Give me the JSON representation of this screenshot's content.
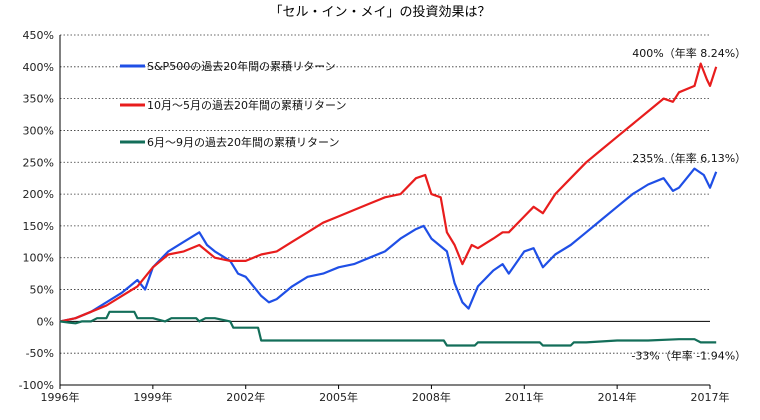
{
  "chart_data": {
    "type": "line",
    "title": "「セル・イン・メイ」の投資効果は？",
    "yaxis": {
      "min": -100,
      "max": 450,
      "step": 50,
      "tick_labels": [
        "-100%",
        "-50%",
        "0%",
        "50%",
        "100%",
        "150%",
        "200%",
        "250%",
        "300%",
        "350%",
        "400%",
        "450%"
      ]
    },
    "xaxis": {
      "min": 1996,
      "max": 2017,
      "ticks": [
        1996,
        1999,
        2002,
        2005,
        2008,
        2011,
        2014,
        2017
      ],
      "tick_labels": [
        "1996年",
        "1999年",
        "2002年",
        "2005年",
        "2008年",
        "2011年",
        "2014年",
        "2017年"
      ]
    },
    "grid": "horizontal dotted",
    "legend_position": "top-left",
    "series": [
      {
        "name": "S&P500の過去20年間の累積リターン",
        "color": "#1f4fe6",
        "points": [
          [
            1996.0,
            0
          ],
          [
            1996.5,
            5
          ],
          [
            1997.0,
            15
          ],
          [
            1997.5,
            30
          ],
          [
            1998.0,
            45
          ],
          [
            1998.5,
            65
          ],
          [
            1998.75,
            50
          ],
          [
            1999.0,
            85
          ],
          [
            1999.5,
            110
          ],
          [
            2000.0,
            125
          ],
          [
            2000.5,
            140
          ],
          [
            2000.75,
            120
          ],
          [
            2001.0,
            110
          ],
          [
            2001.5,
            95
          ],
          [
            2001.75,
            75
          ],
          [
            2002.0,
            70
          ],
          [
            2002.5,
            40
          ],
          [
            2002.75,
            30
          ],
          [
            2003.0,
            35
          ],
          [
            2003.5,
            55
          ],
          [
            2004.0,
            70
          ],
          [
            2004.5,
            75
          ],
          [
            2005.0,
            85
          ],
          [
            2005.5,
            90
          ],
          [
            2006.0,
            100
          ],
          [
            2006.5,
            110
          ],
          [
            2007.0,
            130
          ],
          [
            2007.5,
            145
          ],
          [
            2007.75,
            150
          ],
          [
            2008.0,
            130
          ],
          [
            2008.5,
            110
          ],
          [
            2008.75,
            60
          ],
          [
            2009.0,
            30
          ],
          [
            2009.2,
            20
          ],
          [
            2009.5,
            55
          ],
          [
            2010.0,
            80
          ],
          [
            2010.3,
            90
          ],
          [
            2010.5,
            75
          ],
          [
            2011.0,
            110
          ],
          [
            2011.3,
            115
          ],
          [
            2011.6,
            85
          ],
          [
            2012.0,
            105
          ],
          [
            2012.5,
            120
          ],
          [
            2013.0,
            140
          ],
          [
            2013.5,
            160
          ],
          [
            2014.0,
            180
          ],
          [
            2014.5,
            200
          ],
          [
            2015.0,
            215
          ],
          [
            2015.5,
            225
          ],
          [
            2015.8,
            205
          ],
          [
            2016.0,
            210
          ],
          [
            2016.5,
            240
          ],
          [
            2016.8,
            230
          ],
          [
            2017.0,
            210
          ],
          [
            2017.2,
            235
          ]
        ]
      },
      {
        "name": "10月～5月の過去20年間の累積リターン",
        "color": "#e81d1d",
        "points": [
          [
            1996.0,
            0
          ],
          [
            1996.5,
            5
          ],
          [
            1997.0,
            15
          ],
          [
            1997.5,
            25
          ],
          [
            1998.0,
            40
          ],
          [
            1998.5,
            55
          ],
          [
            1999.0,
            85
          ],
          [
            1999.5,
            105
          ],
          [
            2000.0,
            110
          ],
          [
            2000.5,
            120
          ],
          [
            2001.0,
            100
          ],
          [
            2001.5,
            95
          ],
          [
            2002.0,
            95
          ],
          [
            2002.5,
            105
          ],
          [
            2003.0,
            110
          ],
          [
            2003.5,
            125
          ],
          [
            2004.0,
            140
          ],
          [
            2004.5,
            155
          ],
          [
            2005.0,
            165
          ],
          [
            2005.5,
            175
          ],
          [
            2006.0,
            185
          ],
          [
            2006.5,
            195
          ],
          [
            2007.0,
            200
          ],
          [
            2007.5,
            225
          ],
          [
            2007.8,
            230
          ],
          [
            2008.0,
            200
          ],
          [
            2008.3,
            195
          ],
          [
            2008.5,
            140
          ],
          [
            2008.75,
            120
          ],
          [
            2009.0,
            90
          ],
          [
            2009.3,
            120
          ],
          [
            2009.5,
            115
          ],
          [
            2010.0,
            130
          ],
          [
            2010.3,
            140
          ],
          [
            2010.5,
            140
          ],
          [
            2011.0,
            165
          ],
          [
            2011.3,
            180
          ],
          [
            2011.6,
            170
          ],
          [
            2012.0,
            200
          ],
          [
            2012.5,
            225
          ],
          [
            2013.0,
            250
          ],
          [
            2013.5,
            270
          ],
          [
            2014.0,
            290
          ],
          [
            2014.5,
            310
          ],
          [
            2015.0,
            330
          ],
          [
            2015.5,
            350
          ],
          [
            2015.8,
            345
          ],
          [
            2016.0,
            360
          ],
          [
            2016.5,
            370
          ],
          [
            2016.7,
            405
          ],
          [
            2016.9,
            380
          ],
          [
            2017.0,
            370
          ],
          [
            2017.2,
            400
          ]
        ]
      },
      {
        "name": "6月～9月の過去20年間の累積リターン",
        "color": "#136e59",
        "points": [
          [
            1996.0,
            0
          ],
          [
            1996.3,
            -2
          ],
          [
            1996.5,
            -3
          ],
          [
            1996.7,
            0
          ],
          [
            1997.0,
            0
          ],
          [
            1997.2,
            5
          ],
          [
            1997.5,
            5
          ],
          [
            1997.6,
            15
          ],
          [
            1998.0,
            15
          ],
          [
            1998.4,
            15
          ],
          [
            1998.5,
            5
          ],
          [
            1999.0,
            5
          ],
          [
            1999.4,
            0
          ],
          [
            1999.6,
            5
          ],
          [
            2000.0,
            5
          ],
          [
            2000.4,
            5
          ],
          [
            2000.5,
            0
          ],
          [
            2000.7,
            5
          ],
          [
            2001.0,
            5
          ],
          [
            2001.5,
            0
          ],
          [
            2001.6,
            -10
          ],
          [
            2002.0,
            -10
          ],
          [
            2002.4,
            -10
          ],
          [
            2002.5,
            -30
          ],
          [
            2003.0,
            -30
          ],
          [
            2004.0,
            -30
          ],
          [
            2005.0,
            -30
          ],
          [
            2006.0,
            -30
          ],
          [
            2007.0,
            -30
          ],
          [
            2008.0,
            -30
          ],
          [
            2008.4,
            -30
          ],
          [
            2008.5,
            -38
          ],
          [
            2009.0,
            -38
          ],
          [
            2009.4,
            -38
          ],
          [
            2009.5,
            -33
          ],
          [
            2010.0,
            -33
          ],
          [
            2011.0,
            -33
          ],
          [
            2011.5,
            -33
          ],
          [
            2011.6,
            -38
          ],
          [
            2012.0,
            -38
          ],
          [
            2012.5,
            -38
          ],
          [
            2012.6,
            -33
          ],
          [
            2013.0,
            -33
          ],
          [
            2014.0,
            -30
          ],
          [
            2015.0,
            -30
          ],
          [
            2016.0,
            -28
          ],
          [
            2016.5,
            -28
          ],
          [
            2016.7,
            -33
          ],
          [
            2017.0,
            -33
          ],
          [
            2017.2,
            -33
          ]
        ]
      }
    ],
    "annotations": [
      {
        "text": "400%（年率 8.24%）",
        "x": 2017.2,
        "y": 400,
        "anchor": "above"
      },
      {
        "text": "235%（年率 6.13%）",
        "x": 2017.2,
        "y": 235,
        "anchor": "above"
      },
      {
        "text": "-33%（年率 -1.94%）",
        "x": 2017.2,
        "y": -33,
        "anchor": "below"
      }
    ]
  }
}
